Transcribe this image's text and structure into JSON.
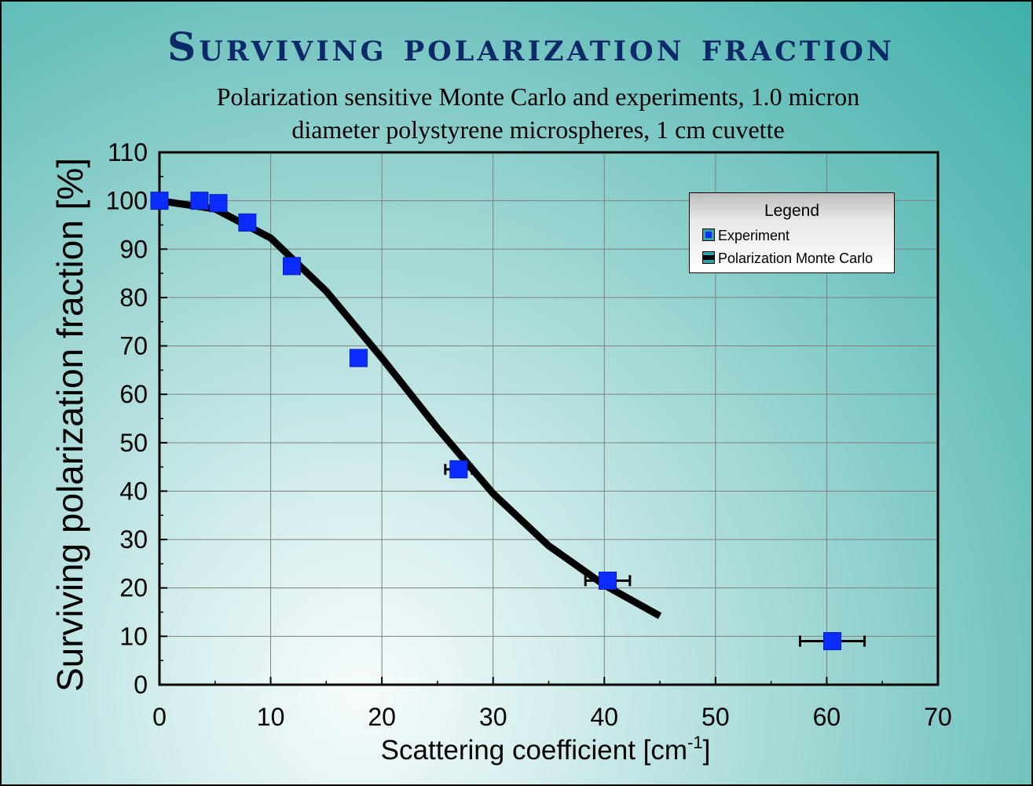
{
  "title": "Surviving polarization fraction",
  "subtitle_lines": [
    "Polarization sensitive Monte Carlo and experiments, 1.0 micron",
    "diameter polystyrene microspheres, 1 cm cuvette"
  ],
  "legend": {
    "title": "Legend",
    "items": [
      "Experiment",
      "Polarization Monte Carlo"
    ]
  },
  "colors": {
    "experiment_marker": "#0a2cff",
    "model_line": "#000000",
    "title": "#0c2a68"
  },
  "chart_data": {
    "type": "scatter",
    "title": "Surviving polarization fraction",
    "xlabel": "Scattering coefficient [cm",
    "xlabel_superscript": "-1",
    "xlabel_suffix": "]",
    "ylabel": "Surviving polarization fraction [%]",
    "xlim": [
      0,
      70
    ],
    "ylim": [
      0,
      110
    ],
    "x_ticks": [
      0,
      10,
      20,
      30,
      40,
      50,
      60,
      70
    ],
    "y_ticks": [
      0,
      10,
      20,
      30,
      40,
      50,
      60,
      70,
      80,
      90,
      100,
      110
    ],
    "grid": true,
    "legend_position": "top-right",
    "series": [
      {
        "name": "Experiment",
        "type": "scatter",
        "points": [
          {
            "x": 0,
            "y": 100,
            "xerr": 0
          },
          {
            "x": 3.6,
            "y": 100,
            "xerr": 0
          },
          {
            "x": 5.3,
            "y": 99.5,
            "xerr": 0
          },
          {
            "x": 7.9,
            "y": 95.5,
            "xerr": 0
          },
          {
            "x": 11.9,
            "y": 86.5,
            "xerr": 0
          },
          {
            "x": 17.9,
            "y": 67.5,
            "xerr": 0
          },
          {
            "x": 26.9,
            "y": 44.5,
            "xerr": 1.2
          },
          {
            "x": 40.3,
            "y": 21.5,
            "xerr": 2.0
          },
          {
            "x": 60.5,
            "y": 9,
            "xerr": 2.9
          }
        ]
      },
      {
        "name": "Polarization Monte Carlo",
        "type": "line",
        "x": [
          0,
          5,
          10,
          15,
          20,
          25,
          30,
          35,
          40,
          45
        ],
        "y": [
          100,
          98.3,
          92.3,
          81.3,
          67.5,
          53,
          39.5,
          28.7,
          20.6,
          14.2
        ]
      }
    ]
  }
}
